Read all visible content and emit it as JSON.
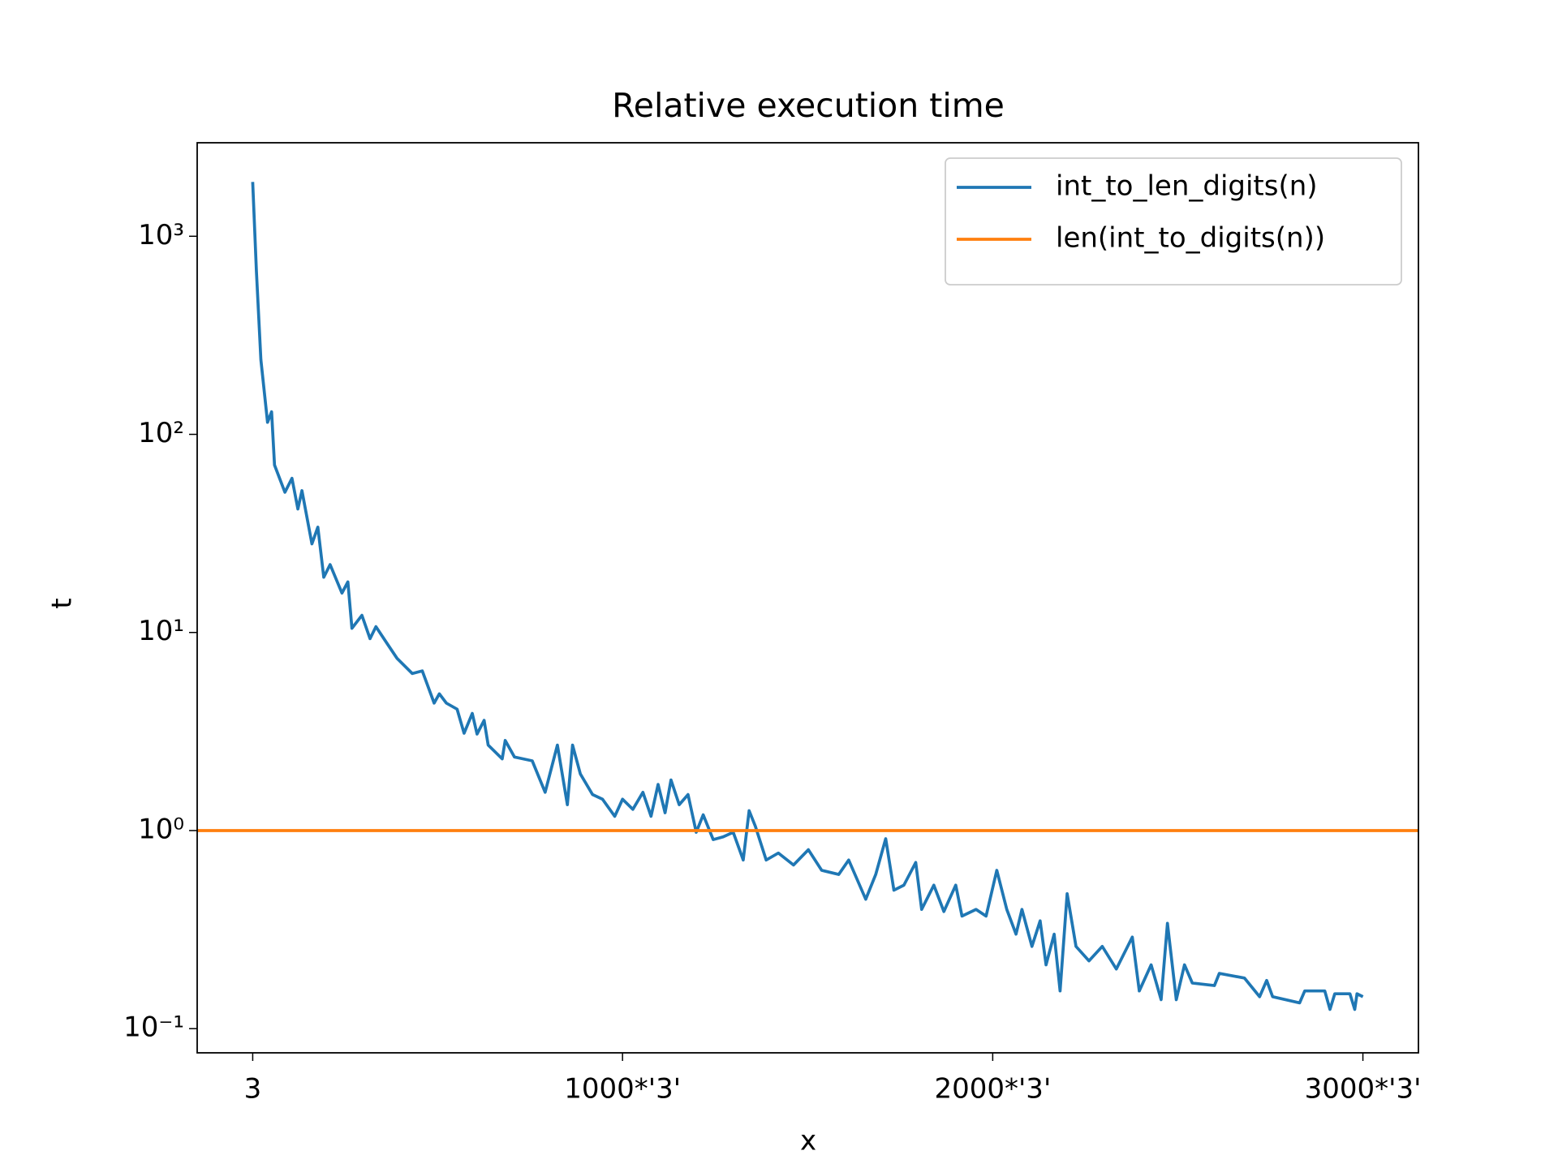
{
  "chart_data": {
    "type": "line",
    "title": "Relative execution time",
    "x_label": "x",
    "y_label": "t",
    "log_y": true,
    "xlim": [
      -149,
      3150
    ],
    "ylim": [
      0.0755,
      2965
    ],
    "xticks": [
      {
        "value": 1,
        "label": "3"
      },
      {
        "value": 1000,
        "label": "1000*'3'"
      },
      {
        "value": 2000,
        "label": "2000*'3'"
      },
      {
        "value": 3000,
        "label": "3000*'3'"
      }
    ],
    "yticks": [
      {
        "value": 0.1,
        "label": "10⁻¹"
      },
      {
        "value": 1,
        "label": "10⁰"
      },
      {
        "value": 10,
        "label": "10¹"
      },
      {
        "value": 100,
        "label": "10²"
      },
      {
        "value": 1000,
        "label": "10³"
      }
    ],
    "legend": "upper right",
    "series": [
      {
        "name": "int_to_len_digits(n)",
        "color": "#1f77b4",
        "x": [
          1,
          11,
          23,
          41,
          52,
          60,
          88,
          107,
          123,
          134,
          161,
          177,
          193,
          210,
          242,
          258,
          269,
          296,
          318,
          334,
          364,
          391,
          432,
          459,
          491,
          505,
          524,
          553,
          572,
          594,
          607,
          626,
          637,
          675,
          683,
          708,
          756,
          791,
          824,
          851,
          865,
          886,
          919,
          946,
          979,
          1000,
          1028,
          1055,
          1077,
          1096,
          1115,
          1131,
          1153,
          1177,
          1199,
          1218,
          1245,
          1272,
          1299,
          1326,
          1342,
          1359,
          1388,
          1421,
          1462,
          1502,
          1538,
          1584,
          1611,
          1657,
          1684,
          1711,
          1733,
          1760,
          1792,
          1808,
          1841,
          1868,
          1900,
          1917,
          1955,
          1982,
          2011,
          2038,
          2063,
          2079,
          2106,
          2128,
          2144,
          2166,
          2182,
          2201,
          2225,
          2260,
          2296,
          2334,
          2377,
          2396,
          2428,
          2455,
          2472,
          2496,
          2518,
          2539,
          2599,
          2612,
          2680,
          2721,
          2740,
          2756,
          2829,
          2843,
          2897,
          2911,
          2924,
          2965,
          2978,
          2984,
          3000
        ],
        "values": [
          1880,
          664,
          238,
          115,
          130,
          70,
          51,
          60,
          42,
          52,
          28,
          34,
          19,
          22,
          15.8,
          18,
          10.5,
          12.2,
          9.3,
          10.7,
          8.8,
          7.4,
          6.2,
          6.4,
          4.4,
          4.9,
          4.4,
          4.1,
          3.1,
          3.9,
          3.07,
          3.6,
          2.7,
          2.3,
          2.85,
          2.35,
          2.25,
          1.56,
          2.7,
          1.35,
          2.7,
          1.93,
          1.52,
          1.44,
          1.18,
          1.44,
          1.28,
          1.56,
          1.18,
          1.71,
          1.23,
          1.8,
          1.35,
          1.52,
          0.98,
          1.2,
          0.9,
          0.93,
          0.98,
          0.71,
          1.26,
          1.05,
          0.71,
          0.77,
          0.67,
          0.8,
          0.63,
          0.6,
          0.71,
          0.45,
          0.6,
          0.91,
          0.5,
          0.53,
          0.69,
          0.4,
          0.53,
          0.39,
          0.53,
          0.37,
          0.4,
          0.37,
          0.63,
          0.4,
          0.3,
          0.4,
          0.26,
          0.35,
          0.21,
          0.3,
          0.155,
          0.48,
          0.26,
          0.22,
          0.26,
          0.2,
          0.29,
          0.155,
          0.21,
          0.14,
          0.34,
          0.14,
          0.21,
          0.17,
          0.165,
          0.19,
          0.18,
          0.145,
          0.175,
          0.145,
          0.135,
          0.155,
          0.155,
          0.125,
          0.15,
          0.15,
          0.125,
          0.15,
          0.145
        ]
      },
      {
        "name": "len(int_to_digits(n))",
        "color": "#ff7f0e",
        "hline": 1
      }
    ]
  }
}
